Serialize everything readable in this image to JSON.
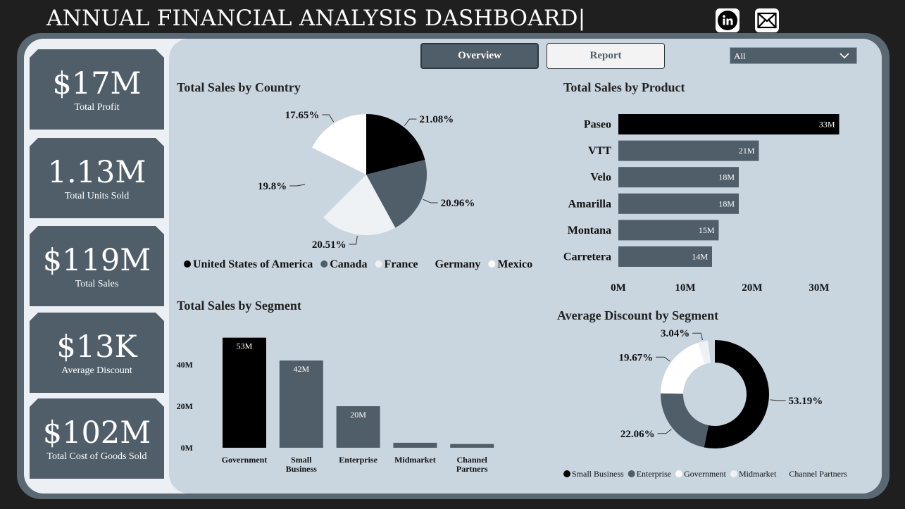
{
  "header": {
    "title": "ANNUAL FINANCIAL ANALYSIS DASHBOARD|"
  },
  "social": {
    "linkedin": "linkedin-icon",
    "mail": "mail-icon"
  },
  "kpis": [
    {
      "value": "$17M",
      "label": "Total Profit"
    },
    {
      "value": "1.13M",
      "label": "Total Units Sold"
    },
    {
      "value": "$119M",
      "label": "Total Sales"
    },
    {
      "value": "$13K",
      "label": "Average Discount"
    },
    {
      "value": "$102M",
      "label": "Total Cost of Goods Sold"
    }
  ],
  "nav": {
    "overview": "Overview",
    "report": "Report"
  },
  "slicer": {
    "selected": "All"
  },
  "colors": {
    "black": "#000000",
    "slate": "#505e69",
    "light": "#eef2f5",
    "white": "#ffffff",
    "panel": "#c9d5df"
  },
  "visuals": {
    "country": {
      "title": "Total Sales by Country"
    },
    "product": {
      "title": "Total Sales by Product"
    },
    "segment": {
      "title": "Total Sales by Segment"
    },
    "discount": {
      "title": "Average Discount by Segment"
    }
  },
  "chart_data": [
    {
      "id": "country",
      "type": "pie",
      "title": "Total Sales by Country",
      "slices": [
        {
          "name": "United States of America",
          "label": "21.08%",
          "value": 21.08,
          "color": "#000000"
        },
        {
          "name": "Canada",
          "label": "20.96%",
          "value": 20.96,
          "color": "#505e69"
        },
        {
          "name": "France",
          "label": "20.51%",
          "value": 20.51,
          "color": "#eef2f5"
        },
        {
          "name": "Germany",
          "label": "19.8%",
          "value": 19.8,
          "color": "#c9d5df"
        },
        {
          "name": "Mexico",
          "label": "17.65%",
          "value": 17.65,
          "color": "#ffffff"
        }
      ],
      "legend_position": "bottom"
    },
    {
      "id": "product",
      "type": "bar",
      "orientation": "horizontal",
      "title": "Total Sales by Product",
      "categories": [
        "Paseo",
        "VTT",
        "Velo",
        "Amarilla",
        "Montana",
        "Carretera"
      ],
      "values": [
        33,
        21,
        18,
        18,
        15,
        14
      ],
      "value_labels": [
        "33M",
        "21M",
        "18M",
        "18M",
        "15M",
        "14M"
      ],
      "x_ticks": [
        "0M",
        "10M",
        "20M",
        "30M"
      ],
      "xlim": [
        0,
        33
      ],
      "unit": "M"
    },
    {
      "id": "segment",
      "type": "bar",
      "title": "Total Sales by Segment",
      "categories": [
        "Government",
        "Small Business",
        "Enterprise",
        "Midmarket",
        "Channel Partners"
      ],
      "values": [
        53,
        42,
        20,
        2.4,
        1.8
      ],
      "value_labels": [
        "53M",
        "42M",
        "20M",
        "",
        ""
      ],
      "y_ticks": [
        "0M",
        "20M",
        "40M"
      ],
      "ylim": [
        0,
        53
      ],
      "unit": "M"
    },
    {
      "id": "discount",
      "type": "pie",
      "title": "Average Discount by Segment",
      "donut": true,
      "slices": [
        {
          "name": "Small Business",
          "label": "53.19%",
          "value": 53.19,
          "color": "#000000"
        },
        {
          "name": "Enterprise",
          "label": "22.06%",
          "value": 22.06,
          "color": "#505e69"
        },
        {
          "name": "Government",
          "label": "19.67%",
          "value": 19.67,
          "color": "#ffffff"
        },
        {
          "name": "Midmarket",
          "label": "3.04%",
          "value": 3.04,
          "color": "#eef2f5"
        },
        {
          "name": "Channel Partners",
          "label": "",
          "value": 2.04,
          "color": "#c9d5df"
        }
      ],
      "legend_position": "bottom"
    }
  ]
}
